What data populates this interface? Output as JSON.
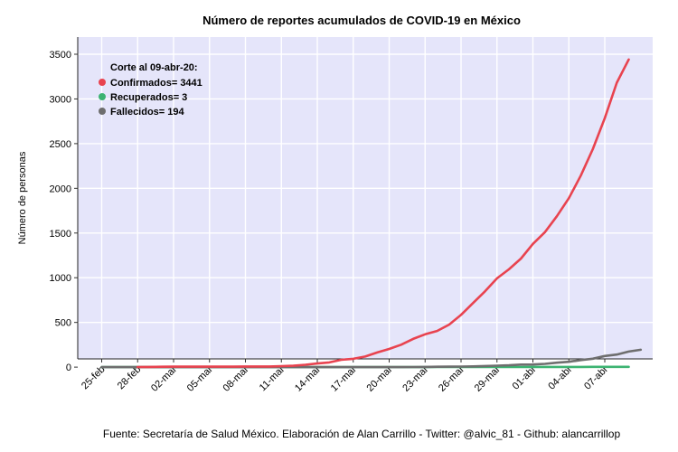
{
  "chart_data": {
    "type": "line",
    "title": "Número de reportes acumulados de COVID-19 en México",
    "ylabel": "Número de personas",
    "xlabel": "",
    "caption": "Fuente: Secretaría de Salud México. Elaboración de Alan Carrillo - Twitter: @alvic_81 - Github: alancarrillop",
    "ylim": [
      -100,
      3500
    ],
    "yticks": [
      0,
      500,
      1000,
      1500,
      2000,
      2500,
      3000,
      3500
    ],
    "xticks": [
      "25-feb",
      "28-feb",
      "02-mar",
      "05-mar",
      "08-mar",
      "11-mar",
      "14-mar",
      "17-mar",
      "20-mar",
      "23-mar",
      "26-mar",
      "29-mar",
      "01-abr",
      "04-abr",
      "07-abr"
    ],
    "xtick_day_index": [
      0,
      3,
      6,
      9,
      12,
      15,
      18,
      21,
      24,
      27,
      30,
      33,
      36,
      39,
      42
    ],
    "x_day_range": [
      -2,
      46
    ],
    "grid": true,
    "background": "#e5e5fa",
    "legend": {
      "title": "Corte al 09-abr-20:",
      "placement": "top-left",
      "items": [
        {
          "label": "Confirmados= 3441",
          "color": "#e8434f"
        },
        {
          "label": "Recuperados= 3",
          "color": "#3cb371"
        },
        {
          "label": "Fallecidos= 194",
          "color": "#6e6e6e"
        }
      ]
    },
    "series": [
      {
        "name": "Confirmados",
        "color": "#e8434f",
        "start_day_index": 3,
        "values": [
          1,
          2,
          4,
          5,
          5,
          5,
          5,
          5,
          5,
          7,
          7,
          7,
          11,
          15,
          26,
          41,
          53,
          82,
          93,
          118,
          164,
          203,
          251,
          316,
          367,
          405,
          475,
          585,
          717,
          848,
          993,
          1094,
          1215,
          1378,
          1510,
          1688,
          1890,
          2143,
          2439,
          2785,
          3181,
          3441
        ]
      },
      {
        "name": "Recuperados",
        "color": "#3cb371",
        "start_day_index": 0,
        "values": [
          0,
          0,
          0,
          0,
          0,
          0,
          0,
          0,
          0,
          0,
          0,
          0,
          0,
          0,
          0,
          0,
          0,
          0,
          0,
          0,
          0,
          0,
          0,
          0,
          0,
          0,
          0,
          0,
          1,
          1,
          1,
          1,
          1,
          1,
          1,
          1,
          2,
          2,
          2,
          2,
          2,
          3,
          3,
          3,
          3
        ]
      },
      {
        "name": "Fallecidos",
        "color": "#6e6e6e",
        "start_day_index": 0,
        "values": [
          0,
          0,
          0,
          0,
          0,
          0,
          0,
          0,
          0,
          0,
          0,
          0,
          0,
          0,
          0,
          0,
          0,
          0,
          0,
          0,
          0,
          0,
          0,
          0,
          0,
          0,
          1,
          2,
          4,
          5,
          6,
          8,
          12,
          16,
          20,
          28,
          29,
          37,
          50,
          60,
          79,
          94,
          125,
          141,
          174,
          194
        ]
      }
    ]
  }
}
